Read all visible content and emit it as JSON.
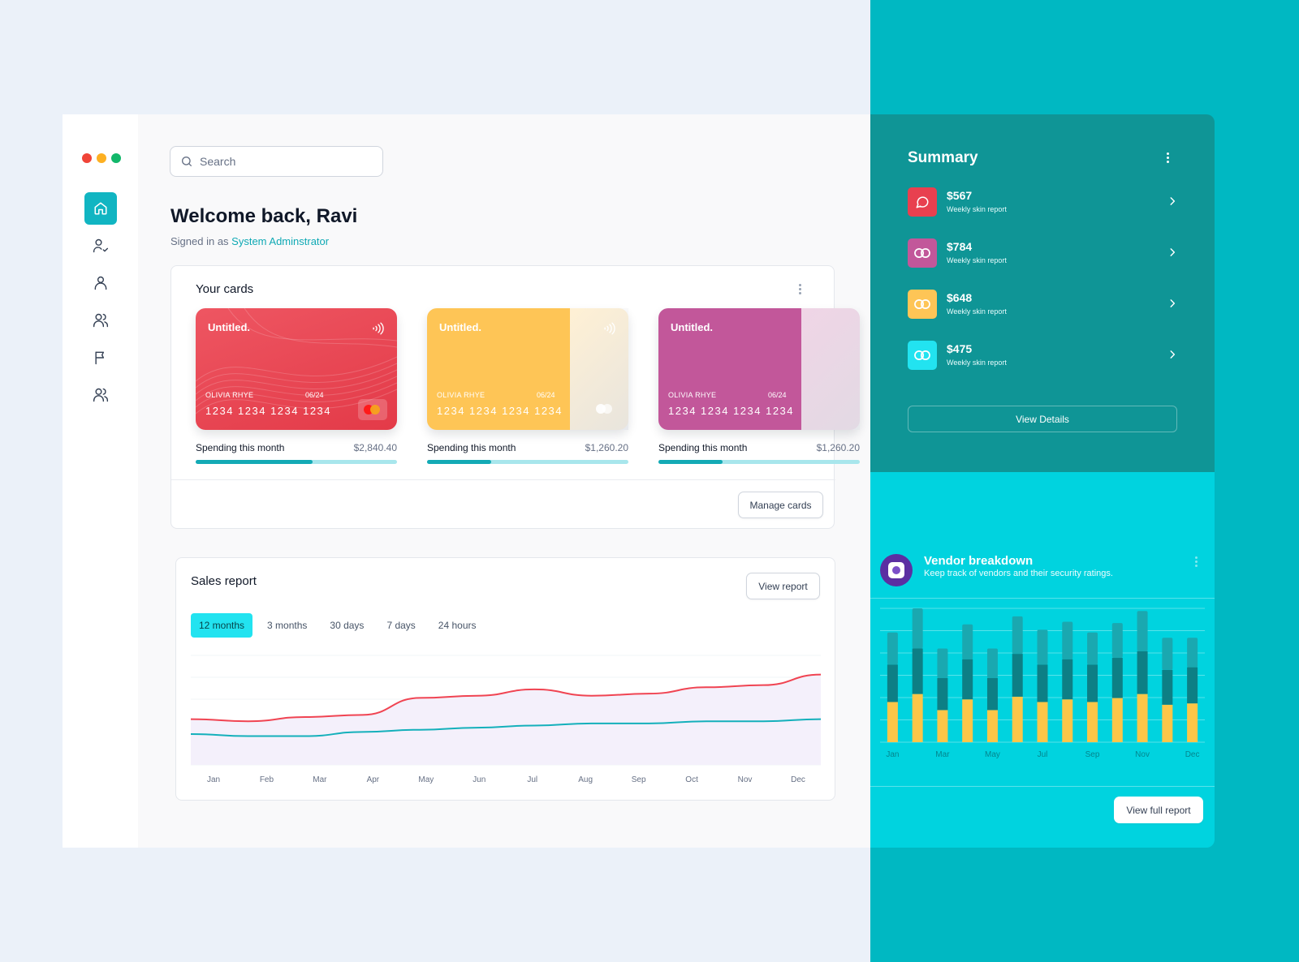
{
  "window_controls": {
    "close_color": "#f04438",
    "minimize_color": "#fdb022",
    "maximize_color": "#12b76a"
  },
  "sidebar": {
    "items": [
      {
        "name": "home-icon",
        "active": true
      },
      {
        "name": "user-check-icon",
        "active": false
      },
      {
        "name": "user-icon",
        "active": false
      },
      {
        "name": "users-icon",
        "active": false
      },
      {
        "name": "flag-icon",
        "active": false
      },
      {
        "name": "team-icon",
        "active": false
      }
    ]
  },
  "search": {
    "placeholder": "Search"
  },
  "header": {
    "welcome": "Welcome back, Ravi",
    "signed_prefix": "Signed in as ",
    "role": "System Adminstrator"
  },
  "cards_panel": {
    "title": "Your cards",
    "manage_label": "Manage cards",
    "cards": [
      {
        "name": "Untitled.",
        "holder": "OLIVIA RHYE",
        "expiry": "06/24",
        "number": "1234 1234 1234 1234",
        "spend_label": "Spending this month",
        "spend_value": "$2,840.40",
        "progress": 0.58,
        "color": "#e8404f"
      },
      {
        "name": "Untitled.",
        "holder": "OLIVIA RHYE",
        "expiry": "06/24",
        "number": "1234 1234 1234 1234",
        "spend_label": "Spending this month",
        "spend_value": "$1,260.20",
        "progress": 0.32,
        "color": "#fec556"
      },
      {
        "name": "Untitled.",
        "holder": "OLIVIA RHYE",
        "expiry": "06/24",
        "number": "1234 1234 1234 1234",
        "spend_label": "Spending this month",
        "spend_value": "$1,260.20",
        "progress": 0.32,
        "color": "#c2579a"
      }
    ]
  },
  "sales_report": {
    "title": "Sales report",
    "view_label": "View report",
    "tabs": [
      "12 months",
      "3 months",
      "30 days",
      "7 days",
      "24 hours"
    ],
    "active_tab": "12 months",
    "chart_data": {
      "type": "line",
      "x": [
        "Jan",
        "Feb",
        "Mar",
        "Apr",
        "May",
        "Jun",
        "Jul",
        "Aug",
        "Sep",
        "Oct",
        "Nov",
        "Dec"
      ],
      "series": [
        {
          "values": [
            40,
            38,
            42,
            44,
            60,
            62,
            68,
            62,
            64,
            70,
            72,
            82
          ],
          "color": "#f04452"
        },
        {
          "values": [
            26,
            24,
            24,
            28,
            30,
            32,
            34,
            36,
            36,
            38,
            38,
            40
          ],
          "color": "#14b0bb"
        }
      ],
      "ylim": [
        0,
        100
      ],
      "grid": true
    }
  },
  "summary": {
    "title": "Summary",
    "items": [
      {
        "amount": "$567",
        "label": "Weekly skin report",
        "icon": "chat-icon",
        "color": "#e8404f"
      },
      {
        "amount": "$784",
        "label": "Weekly skin report",
        "icon": "rings-icon",
        "color": "#c2579a"
      },
      {
        "amount": "$648",
        "label": "Weekly skin report",
        "icon": "rings-icon",
        "color": "#fec556"
      },
      {
        "amount": "$475",
        "label": "Weekly skin report",
        "icon": "rings-icon",
        "color": "#22e3f0"
      }
    ],
    "view_details_label": "View Details"
  },
  "vendor": {
    "title": "Vendor breakdown",
    "subtitle": "Keep track of vendors and their security ratings.",
    "view_full_label": "View full report",
    "chart_data": {
      "type": "bar",
      "stacked": true,
      "categories": [
        "Jan",
        "",
        "Mar",
        "",
        "May",
        "",
        "Jul",
        "",
        "Sep",
        "",
        "Nov",
        "",
        "Dec"
      ],
      "tick_labels": [
        "Jan",
        "Mar",
        "May",
        "Jul",
        "Sep",
        "Nov",
        "Dec"
      ],
      "series": [
        {
          "values": [
            30,
            36,
            24,
            32,
            24,
            34,
            30,
            32,
            30,
            33,
            36,
            28,
            29
          ],
          "color": "#fcc648"
        },
        {
          "values": [
            28,
            34,
            24,
            30,
            24,
            32,
            28,
            30,
            28,
            30,
            32,
            26,
            27
          ],
          "color": "#0d7f85"
        },
        {
          "values": [
            24,
            30,
            22,
            26,
            22,
            28,
            26,
            28,
            24,
            26,
            30,
            24,
            22
          ],
          "color": "#1aa8b0"
        }
      ],
      "ylim": [
        0,
        100
      ],
      "grid": true
    }
  }
}
